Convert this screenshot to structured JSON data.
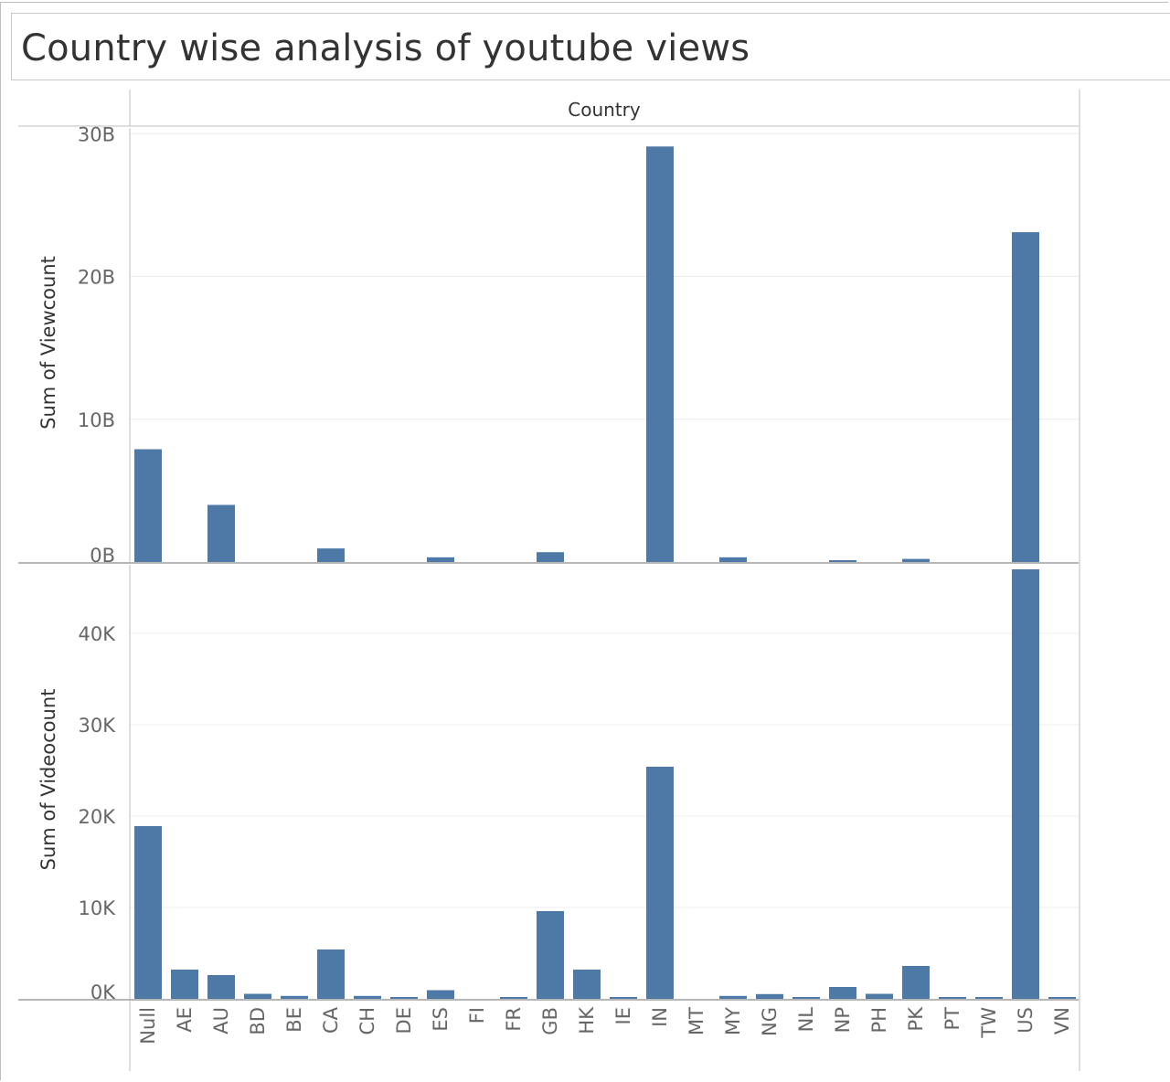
{
  "title": "Country wise analysis of youtube views",
  "colors": {
    "bar": "#4e79a7",
    "grid": "#ececec",
    "axis": "#bdbdbd",
    "text": "#555555",
    "label": "#333333"
  },
  "chart_data": [
    {
      "type": "bar",
      "header": "Country",
      "ylabel": "Sum of Viewcount",
      "ylim": [
        0,
        30400000000
      ],
      "ticks": [
        {
          "value": 0,
          "label": "0B"
        },
        {
          "value": 10000000000,
          "label": "10B"
        },
        {
          "value": 20000000000,
          "label": "20B"
        },
        {
          "value": 30000000000,
          "label": "30B"
        }
      ],
      "categories": [
        "Null",
        "AE",
        "AU",
        "BD",
        "BE",
        "CA",
        "CH",
        "DE",
        "ES",
        "FI",
        "FR",
        "GB",
        "HK",
        "IE",
        "IN",
        "MT",
        "MY",
        "NG",
        "NL",
        "NP",
        "PH",
        "PK",
        "PT",
        "TW",
        "US",
        "VN"
      ],
      "values": [
        7900000000,
        0,
        4000000000,
        0,
        0,
        950000000,
        0,
        0,
        330000000,
        0,
        0,
        690000000,
        0,
        0,
        29100000000,
        0,
        330000000,
        0,
        0,
        80000000,
        0,
        220000000,
        0,
        0,
        23100000000,
        0
      ]
    },
    {
      "type": "bar",
      "ylabel": "Sum of Videocount",
      "xlabel": "Country",
      "ylim": [
        0,
        47500
      ],
      "ticks": [
        {
          "value": 0,
          "label": "0K"
        },
        {
          "value": 10000,
          "label": "10K"
        },
        {
          "value": 20000,
          "label": "20K"
        },
        {
          "value": 30000,
          "label": "30K"
        },
        {
          "value": 40000,
          "label": "40K"
        }
      ],
      "categories": [
        "Null",
        "AE",
        "AU",
        "BD",
        "BE",
        "CA",
        "CH",
        "DE",
        "ES",
        "FI",
        "FR",
        "GB",
        "HK",
        "IE",
        "IN",
        "MT",
        "MY",
        "NG",
        "NL",
        "NP",
        "PH",
        "PK",
        "PT",
        "TW",
        "US",
        "VN"
      ],
      "values": [
        18900,
        3200,
        2600,
        550,
        320,
        5400,
        320,
        150,
        950,
        0,
        120,
        9600,
        3200,
        130,
        25400,
        0,
        320,
        520,
        150,
        1300,
        550,
        3600,
        130,
        130,
        47000,
        120
      ]
    }
  ]
}
